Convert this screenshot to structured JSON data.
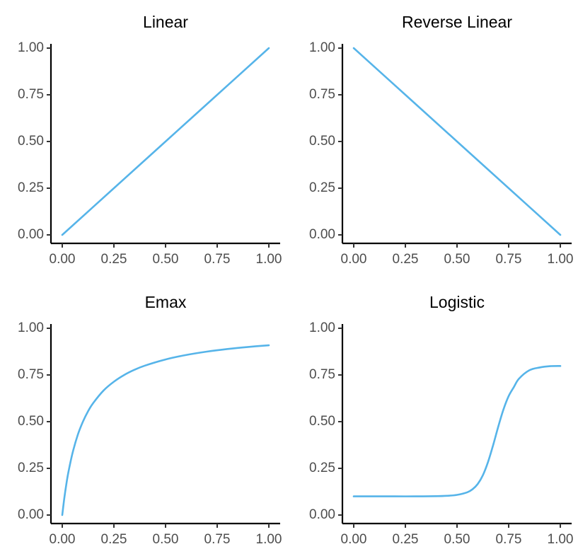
{
  "colors": {
    "line": "#56B4E9",
    "axis": "#000000",
    "tick_text": "#4d4d4d"
  },
  "chart_data": [
    {
      "type": "line",
      "title": "Linear",
      "xlabel": "",
      "ylabel": "",
      "xlim": [
        0,
        1
      ],
      "ylim": [
        0,
        1
      ],
      "x_ticks": [
        "0.00",
        "0.25",
        "0.50",
        "0.75",
        "1.00"
      ],
      "y_ticks": [
        "0.00",
        "0.25",
        "0.50",
        "0.75",
        "1.00"
      ],
      "grid": false,
      "series": [
        {
          "x": [
            0,
            0.25,
            0.5,
            0.75,
            1
          ],
          "y": [
            0,
            0.25,
            0.5,
            0.75,
            1
          ]
        }
      ]
    },
    {
      "type": "line",
      "title": "Reverse Linear",
      "xlabel": "",
      "ylabel": "",
      "xlim": [
        0,
        1
      ],
      "ylim": [
        0,
        1
      ],
      "x_ticks": [
        "0.00",
        "0.25",
        "0.50",
        "0.75",
        "1.00"
      ],
      "y_ticks": [
        "0.00",
        "0.25",
        "0.50",
        "0.75",
        "1.00"
      ],
      "grid": false,
      "series": [
        {
          "x": [
            0,
            0.25,
            0.5,
            0.75,
            1
          ],
          "y": [
            1,
            0.75,
            0.5,
            0.25,
            0
          ]
        }
      ]
    },
    {
      "type": "line",
      "title": "Emax",
      "xlabel": "",
      "ylabel": "",
      "xlim": [
        0,
        1
      ],
      "ylim": [
        0,
        1
      ],
      "x_ticks": [
        "0.00",
        "0.25",
        "0.50",
        "0.75",
        "1.00"
      ],
      "y_ticks": [
        "0.00",
        "0.25",
        "0.50",
        "0.75",
        "1.00"
      ],
      "grid": false,
      "series": [
        {
          "x": [
            0,
            0.01,
            0.02,
            0.03,
            0.05,
            0.075,
            0.1,
            0.125,
            0.15,
            0.2,
            0.25,
            0.3,
            0.35,
            0.4,
            0.5,
            0.6,
            0.7,
            0.8,
            0.9,
            1
          ],
          "y": [
            0,
            0.091,
            0.167,
            0.231,
            0.333,
            0.429,
            0.5,
            0.556,
            0.6,
            0.667,
            0.714,
            0.75,
            0.778,
            0.8,
            0.833,
            0.857,
            0.875,
            0.889,
            0.9,
            0.909
          ]
        }
      ]
    },
    {
      "type": "line",
      "title": "Logistic",
      "xlabel": "",
      "ylabel": "",
      "xlim": [
        0,
        1
      ],
      "ylim": [
        0,
        1
      ],
      "x_ticks": [
        "0.00",
        "0.25",
        "0.50",
        "0.75",
        "1.00"
      ],
      "y_ticks": [
        "0.00",
        "0.25",
        "0.50",
        "0.75",
        "1.00"
      ],
      "grid": false,
      "series": [
        {
          "x": [
            0,
            0.1,
            0.2,
            0.3,
            0.4,
            0.45,
            0.5,
            0.55,
            0.575,
            0.6,
            0.625,
            0.65,
            0.675,
            0.7,
            0.725,
            0.75,
            0.775,
            0.8,
            0.85,
            0.9,
            0.95,
            1
          ],
          "y": [
            0.1,
            0.1,
            0.1,
            0.1,
            0.101,
            0.103,
            0.108,
            0.122,
            0.138,
            0.166,
            0.213,
            0.284,
            0.375,
            0.475,
            0.566,
            0.637,
            0.685,
            0.73,
            0.775,
            0.79,
            0.797,
            0.798
          ]
        }
      ]
    }
  ]
}
